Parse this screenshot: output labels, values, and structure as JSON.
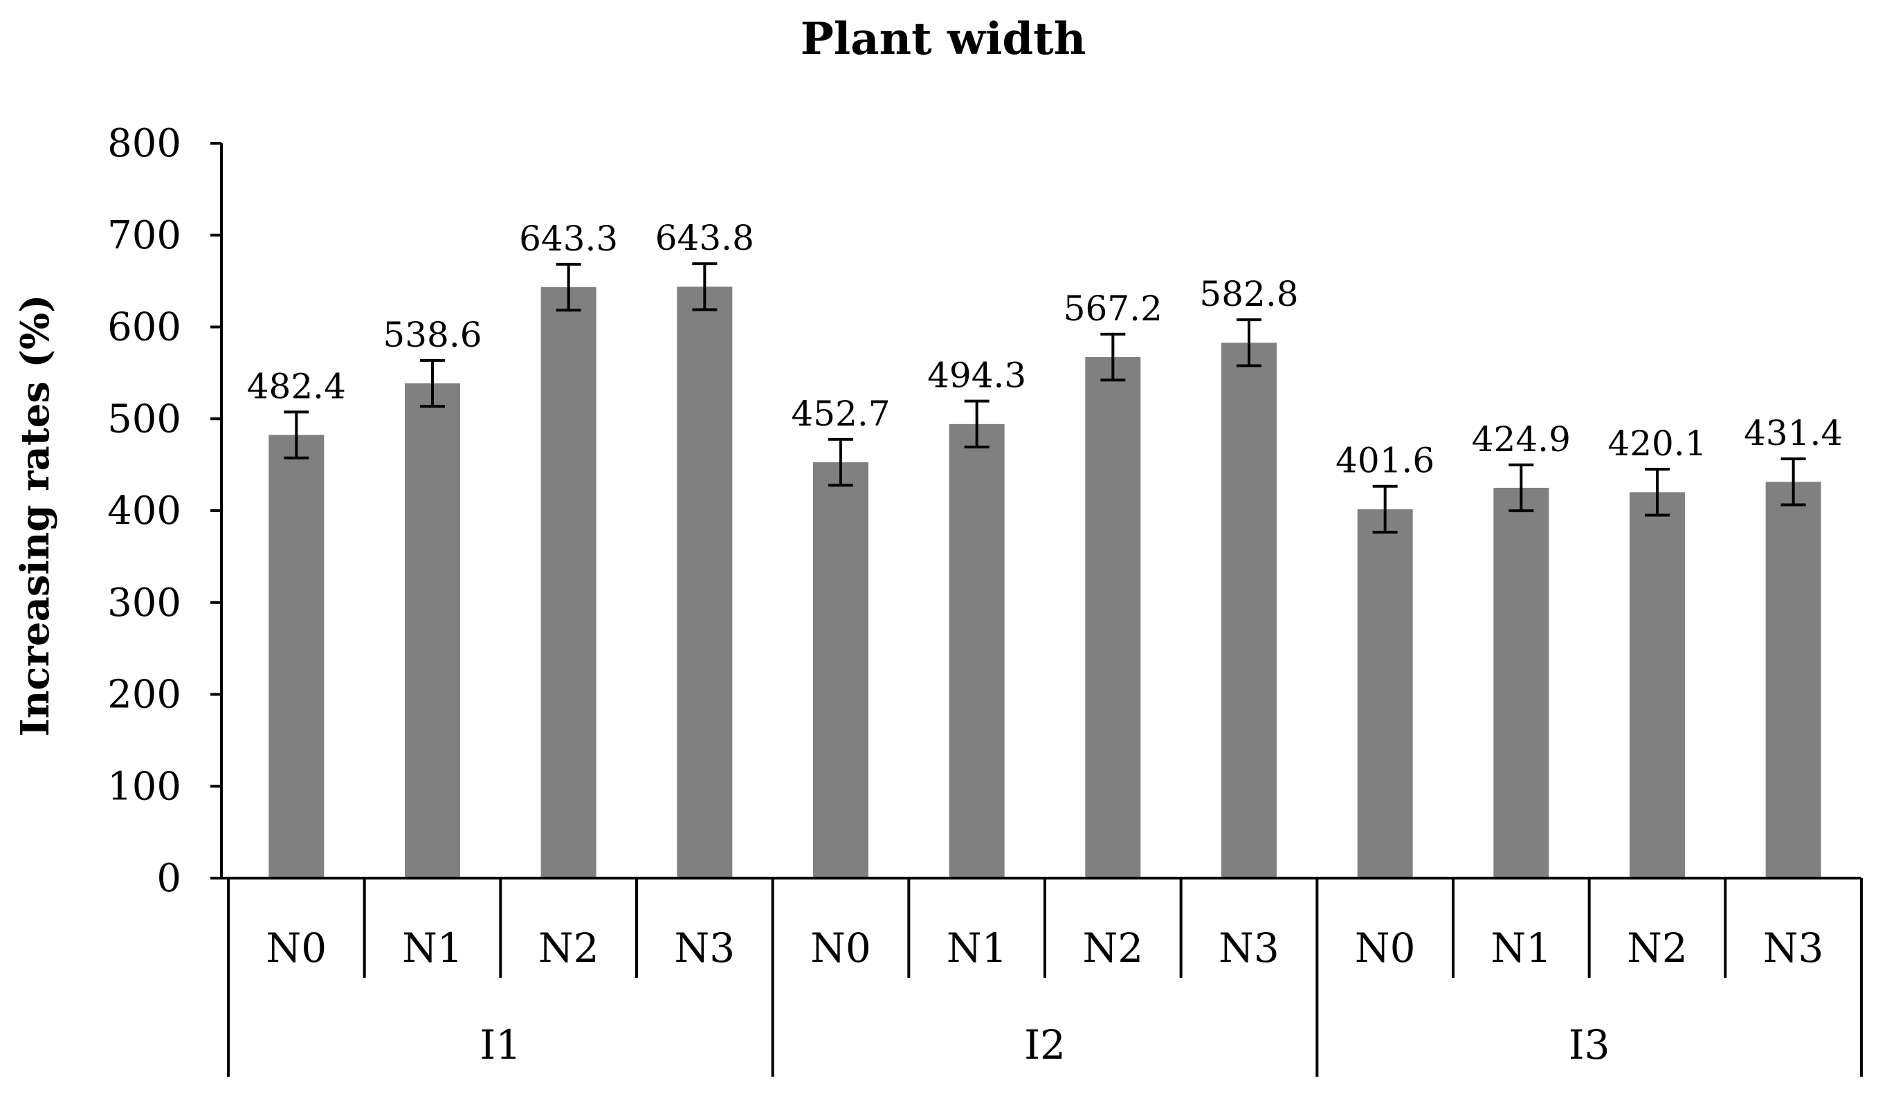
{
  "chart_data": {
    "type": "bar",
    "title": "Plant width",
    "ylabel": "Increasing rates (%)",
    "xlabel": "",
    "ylim": [
      0,
      800
    ],
    "yticks": [
      0,
      100,
      200,
      300,
      400,
      500,
      600,
      700,
      800
    ],
    "grid": false,
    "legend": "none",
    "bar_color": "#808080",
    "groups": [
      {
        "label": "I1",
        "bars": [
          {
            "category": "N0",
            "value": 482.4,
            "value_label": "482.4",
            "error": 25
          },
          {
            "category": "N1",
            "value": 538.6,
            "value_label": "538.6",
            "error": 25
          },
          {
            "category": "N2",
            "value": 643.3,
            "value_label": "643.3",
            "error": 25
          },
          {
            "category": "N3",
            "value": 643.8,
            "value_label": "643.8",
            "error": 25
          }
        ]
      },
      {
        "label": "I2",
        "bars": [
          {
            "category": "N0",
            "value": 452.7,
            "value_label": "452.7",
            "error": 25
          },
          {
            "category": "N1",
            "value": 494.3,
            "value_label": "494.3",
            "error": 25
          },
          {
            "category": "N2",
            "value": 567.2,
            "value_label": "567.2",
            "error": 25
          },
          {
            "category": "N3",
            "value": 582.8,
            "value_label": "582.8",
            "error": 25
          }
        ]
      },
      {
        "label": "I3",
        "bars": [
          {
            "category": "N0",
            "value": 401.6,
            "value_label": "401.6",
            "error": 25
          },
          {
            "category": "N1",
            "value": 424.9,
            "value_label": "424.9",
            "error": 25
          },
          {
            "category": "N2",
            "value": 420.1,
            "value_label": "420.1",
            "error": 25
          },
          {
            "category": "N3",
            "value": 431.4,
            "value_label": "431.4",
            "error": 25
          }
        ]
      }
    ]
  }
}
